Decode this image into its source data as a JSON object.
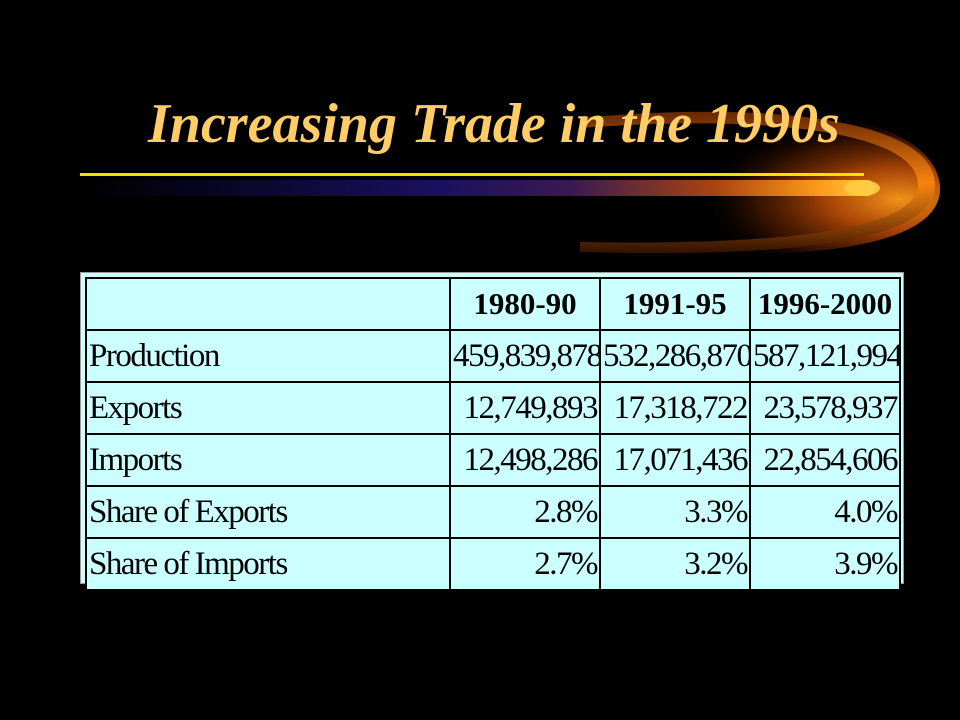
{
  "slide": {
    "title": "Increasing Trade in the 1990s",
    "colors": {
      "background": "#000000",
      "title": "#ffcc66",
      "table_background": "#ccffff",
      "rule": "#ffdd00"
    }
  },
  "table": {
    "headers": [
      "",
      "1980-90",
      "1991-95",
      "1996-2000"
    ],
    "rows": [
      {
        "label": "Production",
        "values": [
          "459,839,878",
          "532,286,870",
          "587,121,994"
        ]
      },
      {
        "label": "Exports",
        "values": [
          "12,749,893",
          "17,318,722",
          "23,578,937"
        ]
      },
      {
        "label": "Imports",
        "values": [
          "12,498,286",
          "17,071,436",
          "22,854,606"
        ]
      },
      {
        "label": "Share of Exports",
        "values": [
          "2.8%",
          "3.3%",
          "4.0%"
        ]
      },
      {
        "label": "Share of Imports",
        "values": [
          "2.7%",
          "3.2%",
          "3.9%"
        ]
      }
    ]
  }
}
